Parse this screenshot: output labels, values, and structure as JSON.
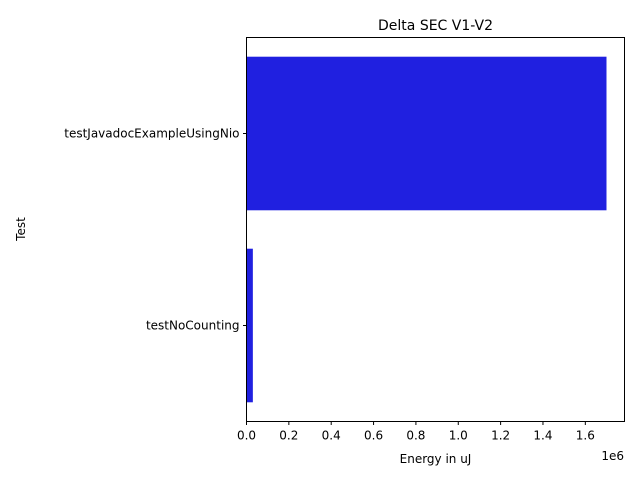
{
  "chart_data": {
    "type": "bar",
    "orientation": "horizontal",
    "title": "Delta SEC V1-V2",
    "xlabel": "Energy in uJ",
    "ylabel": "Test",
    "x_offset_text": "1e6",
    "categories": [
      "testJavadocExampleUsingNio",
      "testNoCounting"
    ],
    "values": [
      1700000,
      30000
    ],
    "xlim": [
      0,
      1785000
    ],
    "xticks": [
      0,
      200000,
      400000,
      600000,
      800000,
      1000000,
      1200000,
      1400000,
      1600000
    ],
    "xtick_labels": [
      "0.0",
      "0.2",
      "0.4",
      "0.6",
      "0.8",
      "1.0",
      "1.2",
      "1.4",
      "1.6"
    ],
    "bar_color": "#2020e0",
    "grid": false,
    "legend": "none"
  }
}
